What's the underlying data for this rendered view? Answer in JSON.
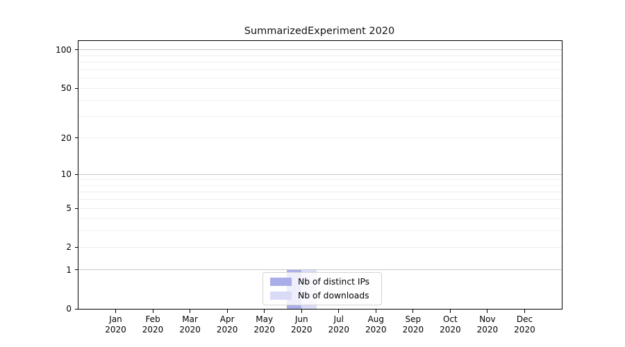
{
  "title": "SummarizedExperiment 2020",
  "legend": {
    "items": [
      {
        "label": "Nb of distinct IPs",
        "color": "#a9aeea"
      },
      {
        "label": "Nb of downloads",
        "color": "#dadcf7"
      }
    ]
  },
  "colors": {
    "bar_distinct_ips": "#a9aeea",
    "bar_downloads": "#dadcf7",
    "grid_major": "#c9c9c9",
    "grid_minor": "#efefef",
    "spine": "#000000",
    "text": "#000000"
  },
  "chart_data": {
    "type": "bar",
    "title": "SummarizedExperiment 2020",
    "categories": [
      "Jan 2020",
      "Feb 2020",
      "Mar 2020",
      "Apr 2020",
      "May 2020",
      "Jun 2020",
      "Jul 2020",
      "Aug 2020",
      "Sep 2020",
      "Oct 2020",
      "Nov 2020",
      "Dec 2020"
    ],
    "series": [
      {
        "name": "Nb of distinct IPs",
        "color": "#a9aeea",
        "values": [
          0,
          0,
          0,
          0,
          0,
          1,
          0,
          0,
          0,
          0,
          0,
          0
        ]
      },
      {
        "name": "Nb of downloads",
        "color": "#dadcf7",
        "values": [
          0,
          0,
          0,
          0,
          0,
          1,
          0,
          0,
          0,
          0,
          0,
          0
        ]
      }
    ],
    "xlabel": "",
    "ylabel": "",
    "yscale": "log1p",
    "ylim": [
      0,
      117.6
    ],
    "yticks": [
      0,
      1,
      2,
      5,
      10,
      20,
      50,
      100
    ],
    "decade_gridlines": [
      1,
      10,
      100
    ],
    "minor_gridlines": [
      2,
      3,
      4,
      5,
      6,
      7,
      8,
      9,
      20,
      30,
      40,
      50,
      60,
      70,
      80,
      90
    ],
    "grid": "horizontal",
    "legend_position": "lower center",
    "bar_group_width_fraction": 0.8
  }
}
